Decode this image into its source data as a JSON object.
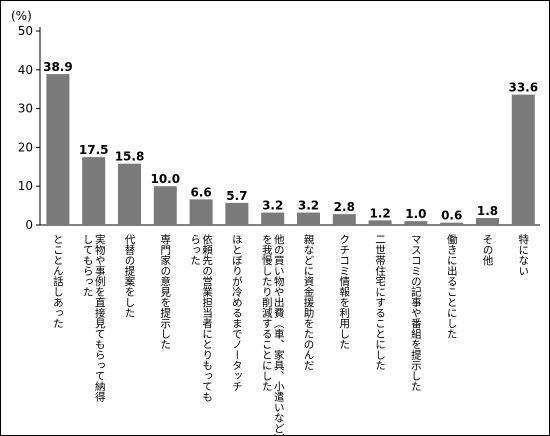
{
  "chart_data": {
    "type": "bar",
    "unit_label": "(%)",
    "ylim": [
      0,
      50
    ],
    "yticks": [
      0,
      10,
      20,
      30,
      40,
      50
    ],
    "grid": false,
    "bar_color": "#7a7a7a",
    "categories": [
      [
        "とことん話しあった"
      ],
      [
        "実物や事例を直接見てもらって納得",
        "してもらった"
      ],
      [
        "代替の提案をした"
      ],
      [
        "専門家の意見を提示した"
      ],
      [
        "依頼先の営業担当者にとりもっても",
        "らった"
      ],
      [
        "ほとぼりが冷めるまでノータッチ"
      ],
      [
        "他の買い物や出費（車、家具、小遣いなど）",
        "を我慢したり削減することにした"
      ],
      [
        "親などに資金援助をたのんだ"
      ],
      [
        "クチコミ情報を利用した"
      ],
      [
        "二世帯住宅にすることにした"
      ],
      [
        "マスコミの記事や番組を提示した"
      ],
      [
        "働きに出ることにした"
      ],
      [
        "その他"
      ],
      [
        "特にない"
      ]
    ],
    "values": [
      38.9,
      17.5,
      15.8,
      10.0,
      6.6,
      5.7,
      3.2,
      3.2,
      2.8,
      1.2,
      1.0,
      0.6,
      1.8,
      33.6
    ],
    "value_labels": [
      "38.9",
      "17.5",
      "15.8",
      "10.0",
      "6.6",
      "5.7",
      "3.2",
      "3.2",
      "2.8",
      "1.2",
      "1.0",
      "0.6",
      "1.8",
      "33.6"
    ]
  }
}
